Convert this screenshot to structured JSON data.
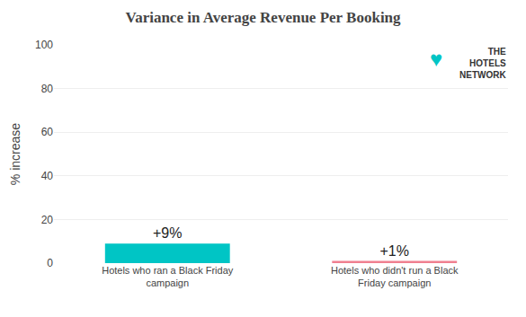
{
  "chart_data": {
    "type": "bar",
    "title": "Variance in Average Revenue Per Booking",
    "ylabel": "% increase",
    "categories": [
      "Hotels who ran a Black Friday\ncampaign",
      "Hotels who didn't run a Black\nFriday campaign"
    ],
    "values": [
      9,
      1
    ],
    "value_labels": [
      "+9%",
      "+1%"
    ],
    "data_labels": true,
    "colors": [
      "#00C5C5",
      "#F08090"
    ],
    "ylim": [
      0,
      100
    ],
    "yticks": [
      0,
      20,
      40,
      60,
      80,
      100
    ],
    "grid": true,
    "annotations": [
      {
        "text": "♥",
        "color": "#00C5C5"
      },
      {
        "text": "THE\nHOTELS\nNETWORK",
        "color": "#333333"
      }
    ]
  }
}
